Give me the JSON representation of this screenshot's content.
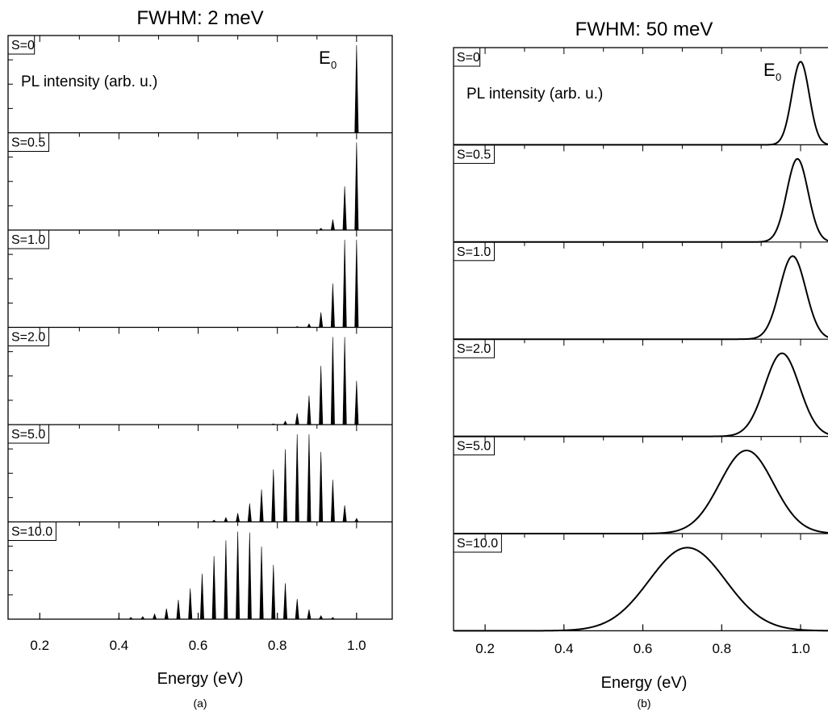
{
  "figure": {
    "panels": [
      {
        "title": "FWHM: 2 meV",
        "caption": "(a)",
        "xlabel": "Energy (eV)",
        "ylabel": "PL intensity (arb. u.)",
        "peak_label": "E",
        "peak_label_sub": "0",
        "xticks": [
          "0.2",
          "0.4",
          "0.6",
          "0.8",
          "1.0"
        ]
      },
      {
        "title": "FWHM: 50 meV",
        "caption": "(b)",
        "xlabel": "Energy (eV)",
        "ylabel": "PL intensity (arb. u.)",
        "peak_label": "E",
        "peak_label_sub": "0",
        "xticks": [
          "0.2",
          "0.4",
          "0.6",
          "0.8",
          "1.0"
        ]
      }
    ]
  },
  "chart_data": [
    {
      "type": "line",
      "title": "FWHM: 2 meV",
      "xlabel": "Energy (eV)",
      "ylabel": "PL intensity (arb. u.)",
      "xlim": [
        0.12,
        1.09
      ],
      "xticks": [
        0.2,
        0.4,
        0.6,
        0.8,
        1.0
      ],
      "grid": false,
      "legend": "none",
      "fwhm_ev": 0.002,
      "zero_phonon_energy_ev": 1.0,
      "phonon_energy_ev": 0.03,
      "annotation": "E0 at 1.0 eV",
      "series": [
        {
          "label": "S=0",
          "peaks": [
            [
              1.0,
              1.0
            ]
          ]
        },
        {
          "label": "S=0.5",
          "peaks": [
            [
              1.0,
              1.0
            ],
            [
              0.97,
              0.5
            ],
            [
              0.94,
              0.12
            ],
            [
              0.91,
              0.02
            ]
          ]
        },
        {
          "label": "S=1.0",
          "peaks": [
            [
              1.0,
              1.0
            ],
            [
              0.97,
              1.0
            ],
            [
              0.94,
              0.5
            ],
            [
              0.91,
              0.17
            ],
            [
              0.88,
              0.04
            ],
            [
              0.85,
              0.01
            ]
          ]
        },
        {
          "label": "S=2.0",
          "peaks": [
            [
              1.0,
              0.5
            ],
            [
              0.97,
              1.0
            ],
            [
              0.94,
              1.0
            ],
            [
              0.91,
              0.67
            ],
            [
              0.88,
              0.33
            ],
            [
              0.85,
              0.13
            ],
            [
              0.82,
              0.04
            ],
            [
              0.79,
              0.01
            ]
          ]
        },
        {
          "label": "S=5.0",
          "peaks": [
            [
              1.0,
              0.04
            ],
            [
              0.97,
              0.19
            ],
            [
              0.94,
              0.48
            ],
            [
              0.91,
              0.8
            ],
            [
              0.88,
              1.0
            ],
            [
              0.85,
              1.0
            ],
            [
              0.82,
              0.83
            ],
            [
              0.79,
              0.6
            ],
            [
              0.76,
              0.37
            ],
            [
              0.73,
              0.21
            ],
            [
              0.7,
              0.1
            ],
            [
              0.67,
              0.05
            ],
            [
              0.64,
              0.02
            ]
          ]
        },
        {
          "label": "S=10.0",
          "peaks": [
            [
              0.94,
              0.02
            ],
            [
              0.91,
              0.04
            ],
            [
              0.88,
              0.11
            ],
            [
              0.85,
              0.23
            ],
            [
              0.82,
              0.41
            ],
            [
              0.79,
              0.62
            ],
            [
              0.76,
              0.83
            ],
            [
              0.73,
              0.99
            ],
            [
              0.7,
              1.0
            ],
            [
              0.67,
              0.9
            ],
            [
              0.64,
              0.72
            ],
            [
              0.61,
              0.52
            ],
            [
              0.58,
              0.35
            ],
            [
              0.55,
              0.22
            ],
            [
              0.52,
              0.12
            ],
            [
              0.49,
              0.06
            ],
            [
              0.46,
              0.03
            ],
            [
              0.43,
              0.02
            ],
            [
              0.4,
              0.01
            ]
          ]
        }
      ]
    },
    {
      "type": "line",
      "title": "FWHM: 50 meV",
      "xlabel": "Energy (eV)",
      "ylabel": "PL intensity (arb. u.)",
      "xlim": [
        0.12,
        1.09
      ],
      "xticks": [
        0.2,
        0.4,
        0.6,
        0.8,
        1.0
      ],
      "grid": false,
      "legend": "none",
      "fwhm_ev": 0.05,
      "annotation": "E0 at 1.0 eV",
      "series": [
        {
          "label": "S=0",
          "center": 1.0,
          "sigma": 0.022,
          "amplitude": 0.95
        },
        {
          "label": "S=0.5",
          "center": 0.992,
          "sigma": 0.027,
          "amplitude": 0.95
        },
        {
          "label": "S=1.0",
          "center": 0.98,
          "sigma": 0.033,
          "amplitude": 0.95
        },
        {
          "label": "S=2.0",
          "center": 0.953,
          "sigma": 0.044,
          "amplitude": 0.95
        },
        {
          "label": "S=5.0",
          "center": 0.863,
          "sigma": 0.068,
          "amplitude": 0.95
        },
        {
          "label": "S=10.0",
          "center": 0.713,
          "sigma": 0.097,
          "amplitude": 0.95
        }
      ]
    }
  ]
}
